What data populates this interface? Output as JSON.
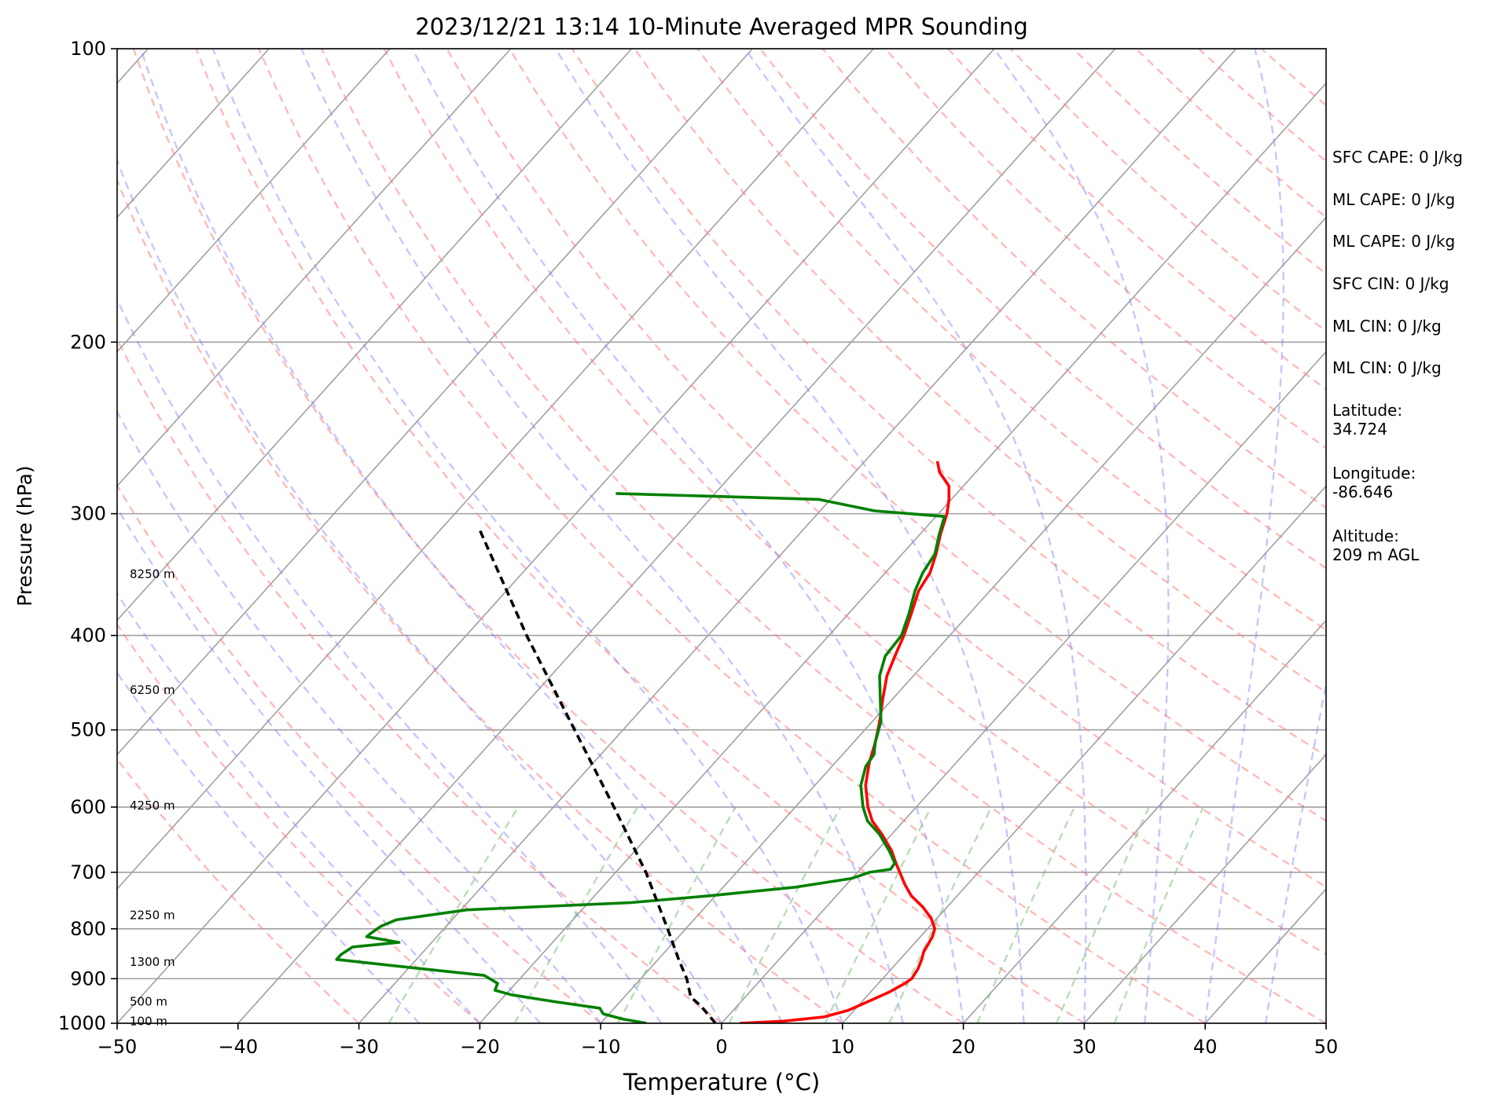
{
  "chart_data": {
    "type": "line",
    "subtype": "skew-t log-p sounding",
    "title": "2023/12/21 13:14 10-Minute Averaged MPR Sounding",
    "xlabel": "Temperature (°C)",
    "ylabel": "Pressure (hPa)",
    "xlim": [
      -50,
      50
    ],
    "ylim": [
      1000,
      100
    ],
    "y_scale": "log",
    "x_ticks": [
      -50,
      -40,
      -30,
      -20,
      -10,
      0,
      10,
      20,
      30,
      40,
      50
    ],
    "x_tick_labels": [
      "−50",
      "−40",
      "−30",
      "−20",
      "−10",
      "0",
      "10",
      "20",
      "30",
      "40",
      "50"
    ],
    "y_ticks": [
      1000,
      900,
      800,
      700,
      600,
      500,
      400,
      300,
      200,
      100
    ],
    "y_tick_labels": [
      "1000",
      "900",
      "800",
      "700",
      "600",
      "500",
      "400",
      "300",
      "200",
      "100"
    ],
    "grid": true,
    "skew_factor": 0.9,
    "series": [
      {
        "color": "#ff0000",
        "points": [
          [
            1000,
            1.5
          ],
          [
            995,
            5
          ],
          [
            985,
            8
          ],
          [
            970,
            9.5
          ],
          [
            950,
            10.5
          ],
          [
            930,
            11.5
          ],
          [
            910,
            12.2
          ],
          [
            900,
            12.4
          ],
          [
            880,
            12.2
          ],
          [
            860,
            11.8
          ],
          [
            845,
            11.4
          ],
          [
            830,
            11.2
          ],
          [
            815,
            11.0
          ],
          [
            800,
            10.6
          ],
          [
            780,
            9.5
          ],
          [
            760,
            8.0
          ],
          [
            740,
            6.2
          ],
          [
            720,
            4.8
          ],
          [
            700,
            3.5
          ],
          [
            685,
            2.5
          ],
          [
            665,
            1.2
          ],
          [
            640,
            -0.8
          ],
          [
            620,
            -2.6
          ],
          [
            600,
            -4.0
          ],
          [
            570,
            -5.8
          ],
          [
            540,
            -7.2
          ],
          [
            515,
            -8.2
          ],
          [
            490,
            -9.4
          ],
          [
            465,
            -10.8
          ],
          [
            440,
            -12.2
          ],
          [
            420,
            -13.0
          ],
          [
            400,
            -13.8
          ],
          [
            380,
            -14.8
          ],
          [
            360,
            -15.9
          ],
          [
            345,
            -16.3
          ],
          [
            330,
            -17.2
          ],
          [
            315,
            -18.3
          ],
          [
            300,
            -19.3
          ],
          [
            290,
            -20.2
          ],
          [
            281,
            -21.2
          ],
          [
            272,
            -23.0
          ],
          [
            265,
            -24.0
          ]
        ]
      },
      {
        "color": "#008000",
        "points": [
          [
            1000,
            -6.2
          ],
          [
            990,
            -8.5
          ],
          [
            978,
            -10.5
          ],
          [
            965,
            -11.2
          ],
          [
            950,
            -15.5
          ],
          [
            935,
            -19.5
          ],
          [
            925,
            -21.2
          ],
          [
            910,
            -21.5
          ],
          [
            893,
            -23.2
          ],
          [
            880,
            -28.5
          ],
          [
            860,
            -36.6
          ],
          [
            850,
            -36.6
          ],
          [
            835,
            -36.2
          ],
          [
            826,
            -32.7
          ],
          [
            815,
            -35.8
          ],
          [
            808,
            -35.7
          ],
          [
            795,
            -35.4
          ],
          [
            783,
            -34.6
          ],
          [
            765,
            -29.5
          ],
          [
            752,
            -16.5
          ],
          [
            740,
            -10.5
          ],
          [
            725,
            -4.0
          ],
          [
            710,
            0.0
          ],
          [
            700,
            1.0
          ],
          [
            695,
            2.5
          ],
          [
            685,
            2.4
          ],
          [
            665,
            1.0
          ],
          [
            640,
            -1.0
          ],
          [
            620,
            -3.0
          ],
          [
            600,
            -4.4
          ],
          [
            570,
            -6.2
          ],
          [
            545,
            -7.2
          ],
          [
            530,
            -7.4
          ],
          [
            515,
            -8.2
          ],
          [
            490,
            -9.3
          ],
          [
            465,
            -11.0
          ],
          [
            440,
            -12.8
          ],
          [
            420,
            -13.8
          ],
          [
            400,
            -14.0
          ],
          [
            380,
            -15.0
          ],
          [
            360,
            -16.2
          ],
          [
            345,
            -16.9
          ],
          [
            330,
            -17.3
          ],
          [
            315,
            -18.4
          ],
          [
            302,
            -19.3
          ],
          [
            298,
            -25.5
          ],
          [
            290,
            -31.0
          ],
          [
            286,
            -48.2
          ]
        ]
      },
      {
        "color": "#000000",
        "points": [
          [
            1000,
            -0.5
          ],
          [
            960,
            -3.0
          ],
          [
            940,
            -4.5
          ],
          [
            900,
            -6.2
          ],
          [
            860,
            -8.3
          ],
          [
            800,
            -11.5
          ],
          [
            700,
            -17.5
          ],
          [
            600,
            -25.0
          ],
          [
            500,
            -34.0
          ],
          [
            400,
            -45.0
          ],
          [
            310,
            -57.0
          ]
        ]
      }
    ],
    "height_labels": [
      {
        "p": 995,
        "text": "100 m"
      },
      {
        "p": 950,
        "text": "500 m"
      },
      {
        "p": 865,
        "text": "1300 m"
      },
      {
        "p": 775,
        "text": "2250 m"
      },
      {
        "p": 598,
        "text": "4250 m"
      },
      {
        "p": 455,
        "text": "6250 m"
      },
      {
        "p": 346,
        "text": "8250 m"
      }
    ],
    "reference_lines": {
      "isotherm_color": "#a0a0a0",
      "dry_adiabat_color": "#ff8080",
      "moist_adiabat_color": "#8080ff",
      "mixing_ratio_color": "#80c080"
    }
  },
  "stats": [
    {
      "text": "SFC CAPE: 0 J/kg"
    },
    {
      "text": "ML CAPE: 0 J/kg"
    },
    {
      "text": "ML CAPE: 0 J/kg"
    },
    {
      "text": "SFC CIN: 0 J/kg"
    },
    {
      "text": "ML CIN: 0 J/kg"
    },
    {
      "text": "ML CIN: 0 J/kg"
    },
    {
      "text": "Latitude:\n34.724"
    },
    {
      "text": "Longitude:\n-86.646"
    },
    {
      "text": "Altitude:\n209 m AGL"
    }
  ]
}
